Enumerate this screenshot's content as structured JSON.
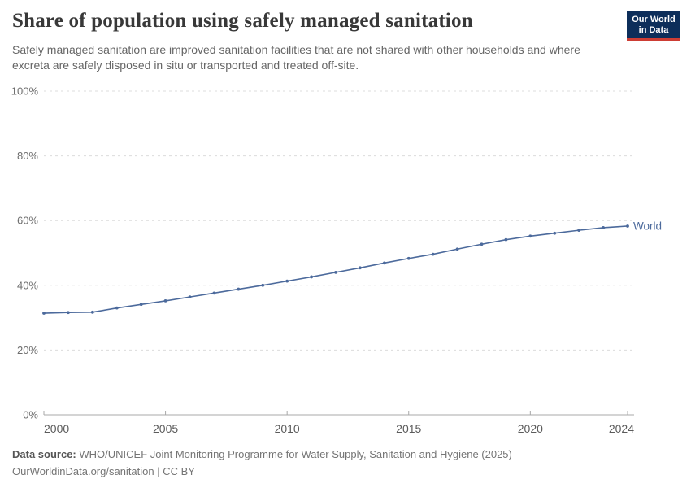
{
  "header": {
    "title": "Share of population using safely managed sanitation",
    "subtitle": "Safely managed sanitation are improved sanitation facilities that are not shared with other households and where excreta are safely disposed in situ or transported and treated off-site.",
    "logo": {
      "line1": "Our World",
      "line2": "in Data",
      "bg_color": "#0d2e5a",
      "accent_color": "#cd3d34"
    }
  },
  "chart_data": {
    "type": "line",
    "title": "Share of population using safely managed sanitation",
    "xlabel": "",
    "ylabel": "",
    "xlim": [
      2000,
      2024
    ],
    "ylim": [
      0,
      100
    ],
    "grid": "horizontal-dashed",
    "legend_position": "end-of-line-label",
    "x_ticks": [
      2000,
      2005,
      2010,
      2015,
      2020,
      2024
    ],
    "y_ticks": [
      "0%",
      "20%",
      "40%",
      "60%",
      "80%",
      "100%"
    ],
    "x": [
      2000,
      2001,
      2002,
      2003,
      2004,
      2005,
      2006,
      2007,
      2008,
      2009,
      2010,
      2011,
      2012,
      2013,
      2014,
      2015,
      2016,
      2017,
      2018,
      2019,
      2020,
      2021,
      2022,
      2023,
      2024
    ],
    "series": [
      {
        "name": "World",
        "color": "#4C6A9C",
        "values": [
          31.4,
          31.6,
          31.7,
          33.0,
          34.1,
          35.2,
          36.4,
          37.6,
          38.8,
          40.0,
          41.3,
          42.6,
          44.0,
          45.4,
          46.9,
          48.3,
          49.6,
          51.2,
          52.7,
          54.1,
          55.2,
          56.1,
          57.0,
          57.8,
          58.3
        ]
      }
    ]
  },
  "footer": {
    "datasource_label": "Data source:",
    "datasource": "WHO/UNICEF Joint Monitoring Programme for Water Supply, Sanitation and Hygiene (2025)",
    "license": "OurWorldinData.org/sanitation | CC BY"
  }
}
